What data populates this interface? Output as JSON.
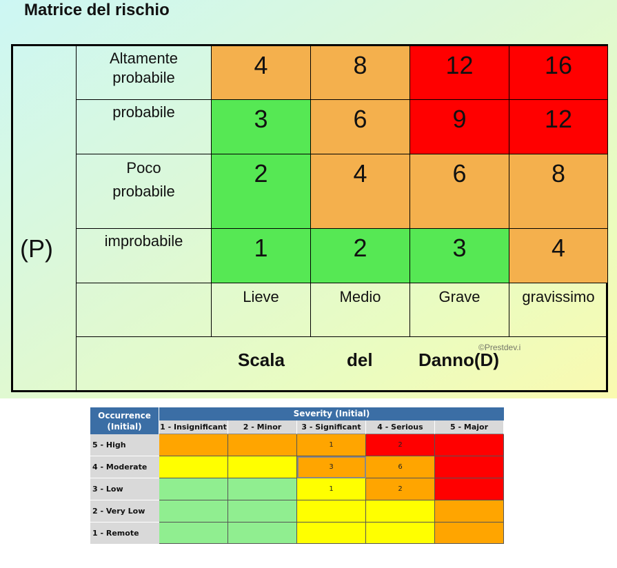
{
  "slide": {
    "title": "Matrice del rischio",
    "p_label": "(P)",
    "rows": [
      {
        "label_lines": [
          "Altamente",
          "probabile"
        ],
        "values": [
          "4",
          "8",
          "12",
          "16"
        ],
        "colors": [
          "#f4b04d",
          "#f4b04d",
          "#ff0000",
          "#ff0000"
        ]
      },
      {
        "label_lines": [
          "probabile"
        ],
        "values": [
          "3",
          "6",
          "9",
          "12"
        ],
        "colors": [
          "#56e854",
          "#f4b04d",
          "#ff0000",
          "#ff0000"
        ]
      },
      {
        "label_lines": [
          "Poco",
          "probabile"
        ],
        "values": [
          "2",
          "4",
          "6",
          "8"
        ],
        "colors": [
          "#56e854",
          "#f4b04d",
          "#f4b04d",
          "#f4b04d"
        ]
      },
      {
        "label_lines": [
          "improbabile"
        ],
        "values": [
          "1",
          "2",
          "3",
          "4"
        ],
        "colors": [
          "#56e854",
          "#56e854",
          "#56e854",
          "#f4b04d"
        ]
      }
    ],
    "damage_labels": [
      "Lieve",
      "Medio",
      "Grave",
      "gravissimo"
    ],
    "scale_words": [
      "Scala",
      "del",
      "Danno(D)"
    ],
    "watermark": "©Prestdev.i"
  },
  "risk_table": {
    "occurrence_header": [
      "Occurrence",
      "(Initial)"
    ],
    "severity_header": "Severity (Initial)",
    "severity_columns": [
      "1 - Insignificant",
      "2 - Minor",
      "3 - Significant",
      "4 - Serious",
      "5 - Major"
    ],
    "rows": [
      {
        "label": "5 - High",
        "values": [
          "",
          "",
          "1",
          "2",
          ""
        ],
        "colors": [
          "#ffa500",
          "#ffa500",
          "#ffa500",
          "#ff0000",
          "#ff0000"
        ]
      },
      {
        "label": "4 - Moderate",
        "values": [
          "",
          "",
          "3",
          "6",
          ""
        ],
        "colors": [
          "#ffff00",
          "#ffff00",
          "#ffa500",
          "#ffa500",
          "#ff0000"
        ]
      },
      {
        "label": "3 - Low",
        "values": [
          "",
          "",
          "1",
          "2",
          ""
        ],
        "colors": [
          "#90ee90",
          "#90ee90",
          "#ffff00",
          "#ffa500",
          "#ff0000"
        ]
      },
      {
        "label": "2 - Very Low",
        "values": [
          "",
          "",
          "",
          "",
          ""
        ],
        "colors": [
          "#90ee90",
          "#90ee90",
          "#ffff00",
          "#ffff00",
          "#ffa500"
        ]
      },
      {
        "label": "1 - Remote",
        "values": [
          "",
          "",
          "",
          "",
          ""
        ],
        "colors": [
          "#90ee90",
          "#90ee90",
          "#ffff00",
          "#ffff00",
          "#ffa500"
        ]
      }
    ]
  }
}
